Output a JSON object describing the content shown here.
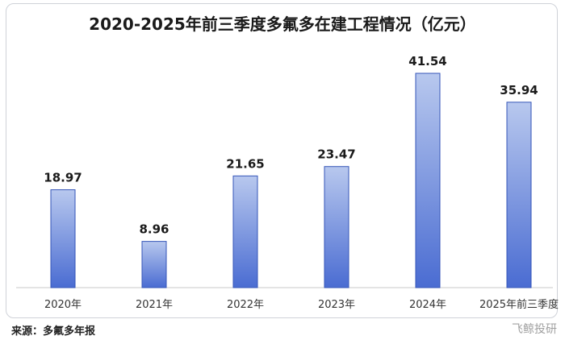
{
  "chart_data": {
    "type": "bar",
    "title": "2020-2025年前三季度多氟多在建工程情况（亿元）",
    "categories": [
      "2020年",
      "2021年",
      "2022年",
      "2023年",
      "2024年",
      "2025年前三季度"
    ],
    "values": [
      18.97,
      8.96,
      21.65,
      23.47,
      41.54,
      35.94
    ],
    "xlabel": "",
    "ylabel": "",
    "ylim": [
      0,
      45
    ],
    "grid": false,
    "legend": "none",
    "colors": {
      "bar_top": "#b8c8ee",
      "bar_bottom": "#4a6cd2",
      "bar_edge": "#3556b8"
    }
  },
  "footer": {
    "source": "来源：多氟多年报",
    "watermark": "飞鲸投研"
  }
}
